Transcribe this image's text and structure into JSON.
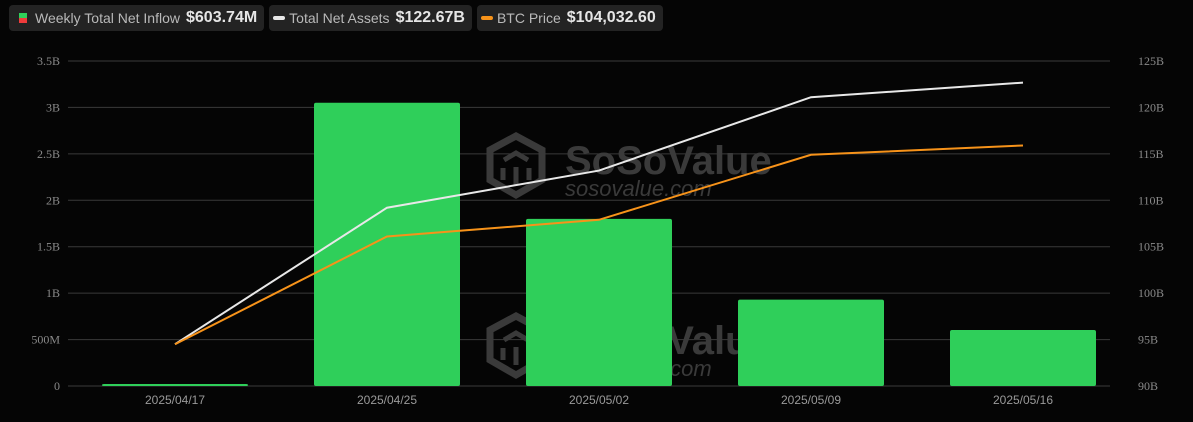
{
  "legend": [
    {
      "label": "Weekly Total Net Inflow",
      "value": "$603.74M",
      "swatch": "bar",
      "colors": [
        "#2fcf5a",
        "#ef3b3b"
      ]
    },
    {
      "label": "Total Net Assets",
      "value": "$122.67B",
      "swatch": "line",
      "color": "#e8e8e8"
    },
    {
      "label": "BTC Price",
      "value": "$104,032.60",
      "swatch": "line",
      "color": "#f7931a"
    }
  ],
  "axes": {
    "left_ticks": [
      "0",
      "500M",
      "1B",
      "1.5B",
      "2B",
      "2.5B",
      "3B",
      "3.5B"
    ],
    "right_ticks": [
      "90B",
      "95B",
      "100B",
      "105B",
      "110B",
      "115B",
      "120B",
      "125B"
    ],
    "x_ticks": [
      "2025/04/17",
      "2025/04/25",
      "2025/05/02",
      "2025/05/09",
      "2025/05/16"
    ]
  },
  "watermark": {
    "brand": "SoSoValue",
    "url": "sosovalue.com"
  },
  "chart_data": {
    "type": "bar",
    "title": "",
    "categories": [
      "2025/04/17",
      "2025/04/25",
      "2025/05/02",
      "2025/05/09",
      "2025/05/16"
    ],
    "series": [
      {
        "name": "Weekly Total Net Inflow",
        "type": "bar",
        "axis": "left",
        "unit": "USD",
        "color": "#2fcf5a",
        "values": [
          15000000,
          3050000000,
          1800000000,
          930000000,
          603740000
        ]
      },
      {
        "name": "Total Net Assets",
        "type": "line",
        "axis": "right",
        "unit": "USD",
        "color": "#e8e8e8",
        "values": [
          94500000000,
          109200000000,
          113200000000,
          121100000000,
          122670000000
        ]
      },
      {
        "name": "BTC Price",
        "type": "line",
        "axis": "right-scaled",
        "unit": "USD",
        "color": "#f7931a",
        "values": [
          84500,
          94300,
          96900,
          103000,
          104032.6
        ]
      }
    ],
    "ylim_left": [
      0,
      3500000000
    ],
    "ylim_right": [
      90000000000,
      125000000000
    ],
    "xlabel": "",
    "ylabel": "",
    "grid": true,
    "legend_position": "top-left"
  }
}
